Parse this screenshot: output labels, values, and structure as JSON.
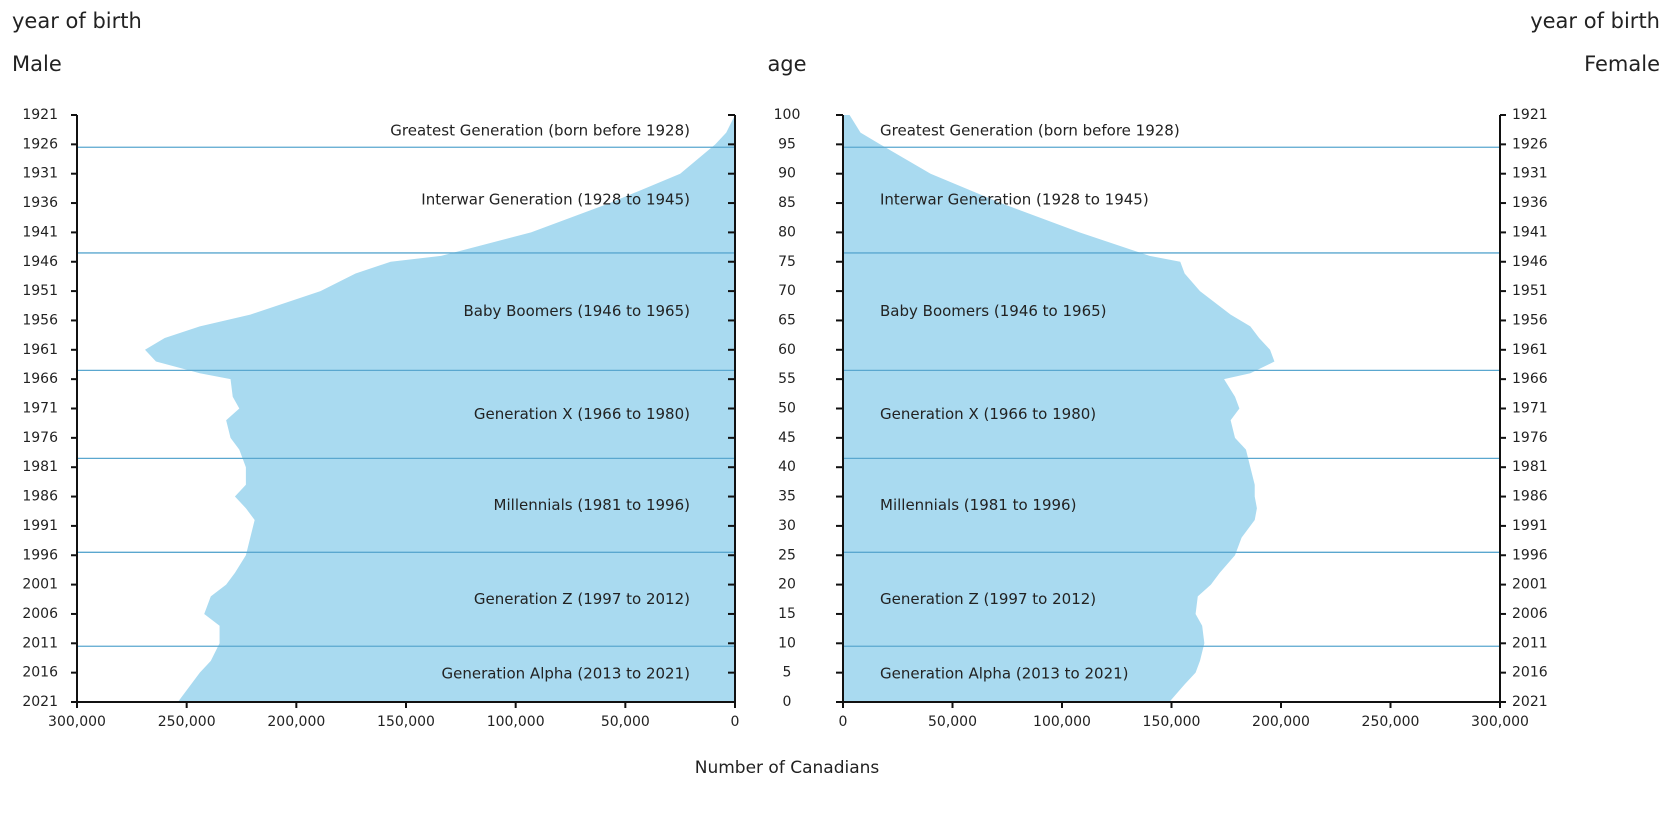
{
  "chart_data": {
    "type": "pyramid",
    "left_axis_label": "year of birth",
    "right_axis_label": "year of birth",
    "age_label": "age",
    "xlabel": "Number of Canadians",
    "ages": [
      0,
      3,
      5,
      7,
      10,
      13,
      15,
      18,
      20,
      22,
      25,
      28,
      31,
      33,
      35,
      37,
      40,
      43,
      45,
      48,
      50,
      52,
      55,
      56,
      58,
      60,
      62,
      64,
      66,
      70,
      73,
      75,
      76,
      80,
      85,
      90,
      95,
      97,
      100
    ],
    "series": [
      {
        "name": "Male",
        "color": "#a9daf0",
        "values": [
          254000,
          248000,
          244000,
          239000,
          235000,
          235000,
          242000,
          239000,
          232000,
          228000,
          223000,
          221000,
          219000,
          223000,
          228000,
          223000,
          223000,
          226000,
          230000,
          232000,
          226000,
          229000,
          230000,
          244000,
          264000,
          269000,
          260000,
          244000,
          221000,
          189000,
          173000,
          157000,
          134000,
          93000,
          57000,
          25000,
          9000,
          4000,
          0
        ]
      },
      {
        "name": "Female",
        "color": "#a9daf0",
        "values": [
          149000,
          156000,
          161000,
          163000,
          165000,
          164000,
          161000,
          162000,
          168000,
          172000,
          179000,
          182000,
          188000,
          189000,
          188000,
          188000,
          186000,
          184000,
          179000,
          177000,
          181000,
          179000,
          174000,
          186000,
          197000,
          195000,
          190000,
          186000,
          177000,
          163000,
          156000,
          154000,
          140000,
          108000,
          72000,
          40000,
          17000,
          8000,
          3000
        ]
      }
    ],
    "xlim": [
      0,
      300000
    ],
    "xticks": [
      0,
      {
        "value": 50000,
        "label": "50,000"
      },
      {
        "value": 100000,
        "label": "100,000"
      },
      {
        "value": 150000,
        "label": "150,000"
      },
      {
        "value": 200000,
        "label": "200,000"
      },
      {
        "value": 250000,
        "label": "250,000"
      },
      {
        "value": 300000,
        "label": "300,000"
      }
    ],
    "ylim": [
      0,
      100
    ],
    "yticks": [
      0,
      5,
      10,
      15,
      20,
      25,
      30,
      35,
      40,
      45,
      50,
      55,
      60,
      65,
      70,
      75,
      80,
      85,
      90,
      95,
      100
    ],
    "y2lim": [
      2021,
      1921
    ],
    "y2ticks": [
      1921,
      1926,
      1931,
      1936,
      1941,
      1946,
      1951,
      1956,
      1961,
      1966,
      1971,
      1976,
      1981,
      1986,
      1991,
      1996,
      2001,
      2006,
      2011,
      2016,
      2021
    ],
    "generations": [
      "Greatest Generation (born before 1928)",
      "Interwar Generation (1928 to 1945)",
      "Baby Boomers (1946 to 1965)",
      "Generation X (1966 to 1980)",
      "Millennials (1981 to 1996)",
      "Generation Z (1997 to 2012)",
      "Generation Alpha (2013 to 2021)"
    ],
    "generation_boundaries": [
      94.5,
      76.5,
      56.5,
      41.5,
      25.5,
      9.5
    ],
    "boundary_color": "#5aa7cf"
  }
}
